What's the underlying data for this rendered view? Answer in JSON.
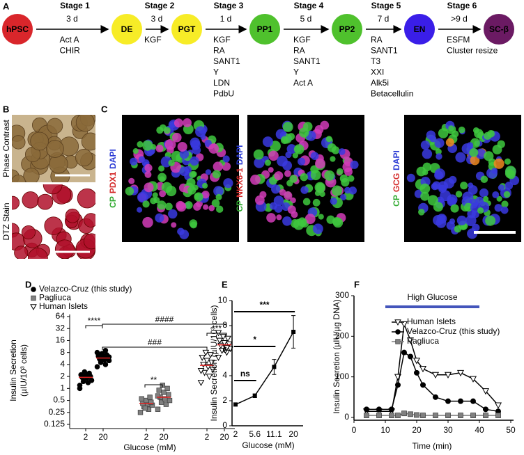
{
  "figure": {
    "panel_a": {
      "label": "A",
      "nodes": [
        {
          "label": "hPSC",
          "color": "#d9262b"
        },
        {
          "label": "DE",
          "color": "#f7ec27"
        },
        {
          "label": "PGT",
          "color": "#f7ec27"
        },
        {
          "label": "PP1",
          "color": "#4fc12d"
        },
        {
          "label": "PP2",
          "color": "#4fc12d"
        },
        {
          "label": "EN",
          "color": "#3a1ee8"
        },
        {
          "label": "SC-β",
          "color": "#6b1a63"
        }
      ],
      "stages": [
        {
          "label": "Stage 1",
          "duration": "3 d",
          "factors": [
            "Act A",
            "CHIR"
          ]
        },
        {
          "label": "Stage 2",
          "duration": "3 d",
          "factors": [
            "KGF"
          ]
        },
        {
          "label": "Stage 3",
          "duration": "1 d",
          "factors": [
            "KGF",
            "RA",
            "SANT1",
            "Y",
            "LDN",
            "PdbU"
          ]
        },
        {
          "label": "Stage 4",
          "duration": "5 d",
          "factors": [
            "KGF",
            "RA",
            "SANT1",
            "Y",
            "Act A"
          ]
        },
        {
          "label": "Stage 5",
          "duration": "7 d",
          "factors": [
            "RA",
            "SANT1",
            "T3",
            "XXI",
            "Alk5i",
            "Betacellulin"
          ]
        },
        {
          "label": "Stage 6",
          "duration": ">9 d",
          "factors": [
            "ESFM",
            "Cluster resize"
          ]
        }
      ]
    },
    "panel_b": {
      "label": "B",
      "images": [
        "Phase Contrast",
        "DTZ Stain"
      ]
    },
    "panel_c": {
      "label": "C",
      "images": [
        [
          {
            "text": "CP",
            "color": "#2faa2f"
          },
          {
            "text": "PDX1",
            "color": "#d42a2a"
          },
          {
            "text": "DAPI",
            "color": "#2a3ad4"
          }
        ],
        [
          {
            "text": "CP",
            "color": "#2faa2f"
          },
          {
            "text": "NKX6-1",
            "color": "#d42a2a"
          },
          {
            "text": "DAPI",
            "color": "#2a3ad4"
          }
        ],
        [
          {
            "text": "CP",
            "color": "#2faa2f"
          },
          {
            "text": "GCG",
            "color": "#d42a2a"
          },
          {
            "text": "DAPI",
            "color": "#2a3ad4"
          }
        ]
      ]
    }
  },
  "chart_data": [
    {
      "type": "strip",
      "panel_label": "D",
      "xlabel": "Glucose (mM)",
      "ylabel": [
        "Insulin Secretion",
        "(µIU/10³ cells)"
      ],
      "categories": [
        "2",
        "20"
      ],
      "yscale": "log",
      "ylim": [
        0.125,
        64
      ],
      "yticks": [
        0.125,
        0.25,
        0.5,
        1,
        2,
        4,
        8,
        16,
        32,
        64
      ],
      "mean_color": "#e02020",
      "series": [
        {
          "name": "Velazco-Cruz (this study)",
          "color": "#000000",
          "marker": "circle",
          "values": [
            [
              1.2,
              1.4,
              1.5,
              1.6,
              1.8,
              1.9,
              2.0,
              2.1,
              2.2,
              2.4,
              2.6,
              1.0
            ],
            [
              3.5,
              4.0,
              4.5,
              5.0,
              5.2,
              5.5,
              5.8,
              6.0,
              6.5,
              7.0,
              7.5,
              8.0,
              9.0,
              4.8,
              6.2,
              5.4
            ]
          ],
          "means": [
            1.9,
            5.8
          ]
        },
        {
          "name": "Pagliuca",
          "color": "#808080",
          "marker": "square",
          "values": [
            [
              0.25,
              0.3,
              0.35,
              0.38,
              0.4,
              0.42,
              0.45,
              0.5,
              0.55,
              0.6,
              0.32
            ],
            [
              0.3,
              0.4,
              0.45,
              0.5,
              0.55,
              0.6,
              0.7,
              0.8,
              0.9,
              1.0,
              1.2,
              0.65
            ]
          ],
          "means": [
            0.42,
            0.6
          ]
        },
        {
          "name": "Human Islets",
          "color": "#000000",
          "marker": "triangle-down-open",
          "values": [
            [
              1.4,
              2.0,
              2.5,
              3.0,
              3.5,
              4.0,
              4.5,
              5.0,
              6.0,
              7.0,
              8.0,
              2.8
            ],
            [
              6,
              8,
              9,
              10,
              11,
              12,
              13,
              14,
              16,
              18,
              20,
              25,
              10.5
            ]
          ],
          "means": [
            3.8,
            12.5
          ]
        }
      ],
      "annotations": [
        "****",
        "####",
        "###",
        "**",
        "***"
      ]
    },
    {
      "type": "line",
      "panel_label": "E",
      "xlabel": "Glucose (mM)",
      "ylabel": "Insulin Secretion (µIU/10³ cells)",
      "categories": [
        "2",
        "5.6",
        "11.1",
        "20"
      ],
      "values": [
        1.7,
        2.4,
        4.7,
        7.5
      ],
      "errors": [
        0.1,
        0.15,
        0.6,
        1.3
      ],
      "color": "#000000",
      "ylim": [
        0,
        10
      ],
      "yticks": [
        0,
        2,
        4,
        6,
        8,
        10
      ],
      "annotations": [
        "ns",
        "*",
        "***"
      ]
    },
    {
      "type": "timecourse",
      "panel_label": "F",
      "xlabel": "Time (min)",
      "ylabel": "Insulin Secretion  (µIU/µg DNA)",
      "xlim": [
        0,
        50
      ],
      "xticks": [
        0,
        10,
        20,
        30,
        40,
        50
      ],
      "ylim": [
        0,
        300
      ],
      "yticks": [
        0,
        100,
        200,
        300
      ],
      "highlight": {
        "label": "High Glucose",
        "x": [
          10,
          40
        ],
        "color": "#4455bb"
      },
      "x": [
        4,
        8,
        12,
        14,
        16,
        18,
        20,
        22,
        26,
        30,
        34,
        38,
        42,
        46
      ],
      "series": [
        {
          "name": "Human Islets",
          "color": "#000000",
          "marker": "triangle-down-open",
          "values": [
            15,
            15,
            15,
            100,
            230,
            190,
            140,
            120,
            105,
            105,
            110,
            95,
            65,
            30
          ]
        },
        {
          "name": "Velazco-Cruz (this study)",
          "color": "#000000",
          "marker": "circle",
          "values": [
            20,
            20,
            20,
            80,
            160,
            150,
            110,
            80,
            50,
            40,
            40,
            40,
            20,
            15
          ]
        },
        {
          "name": "Pagliuca",
          "color": "#808080",
          "marker": "square",
          "values": [
            5,
            5,
            5,
            5,
            10,
            8,
            6,
            5,
            5,
            5,
            5,
            5,
            5,
            5
          ]
        }
      ]
    }
  ]
}
